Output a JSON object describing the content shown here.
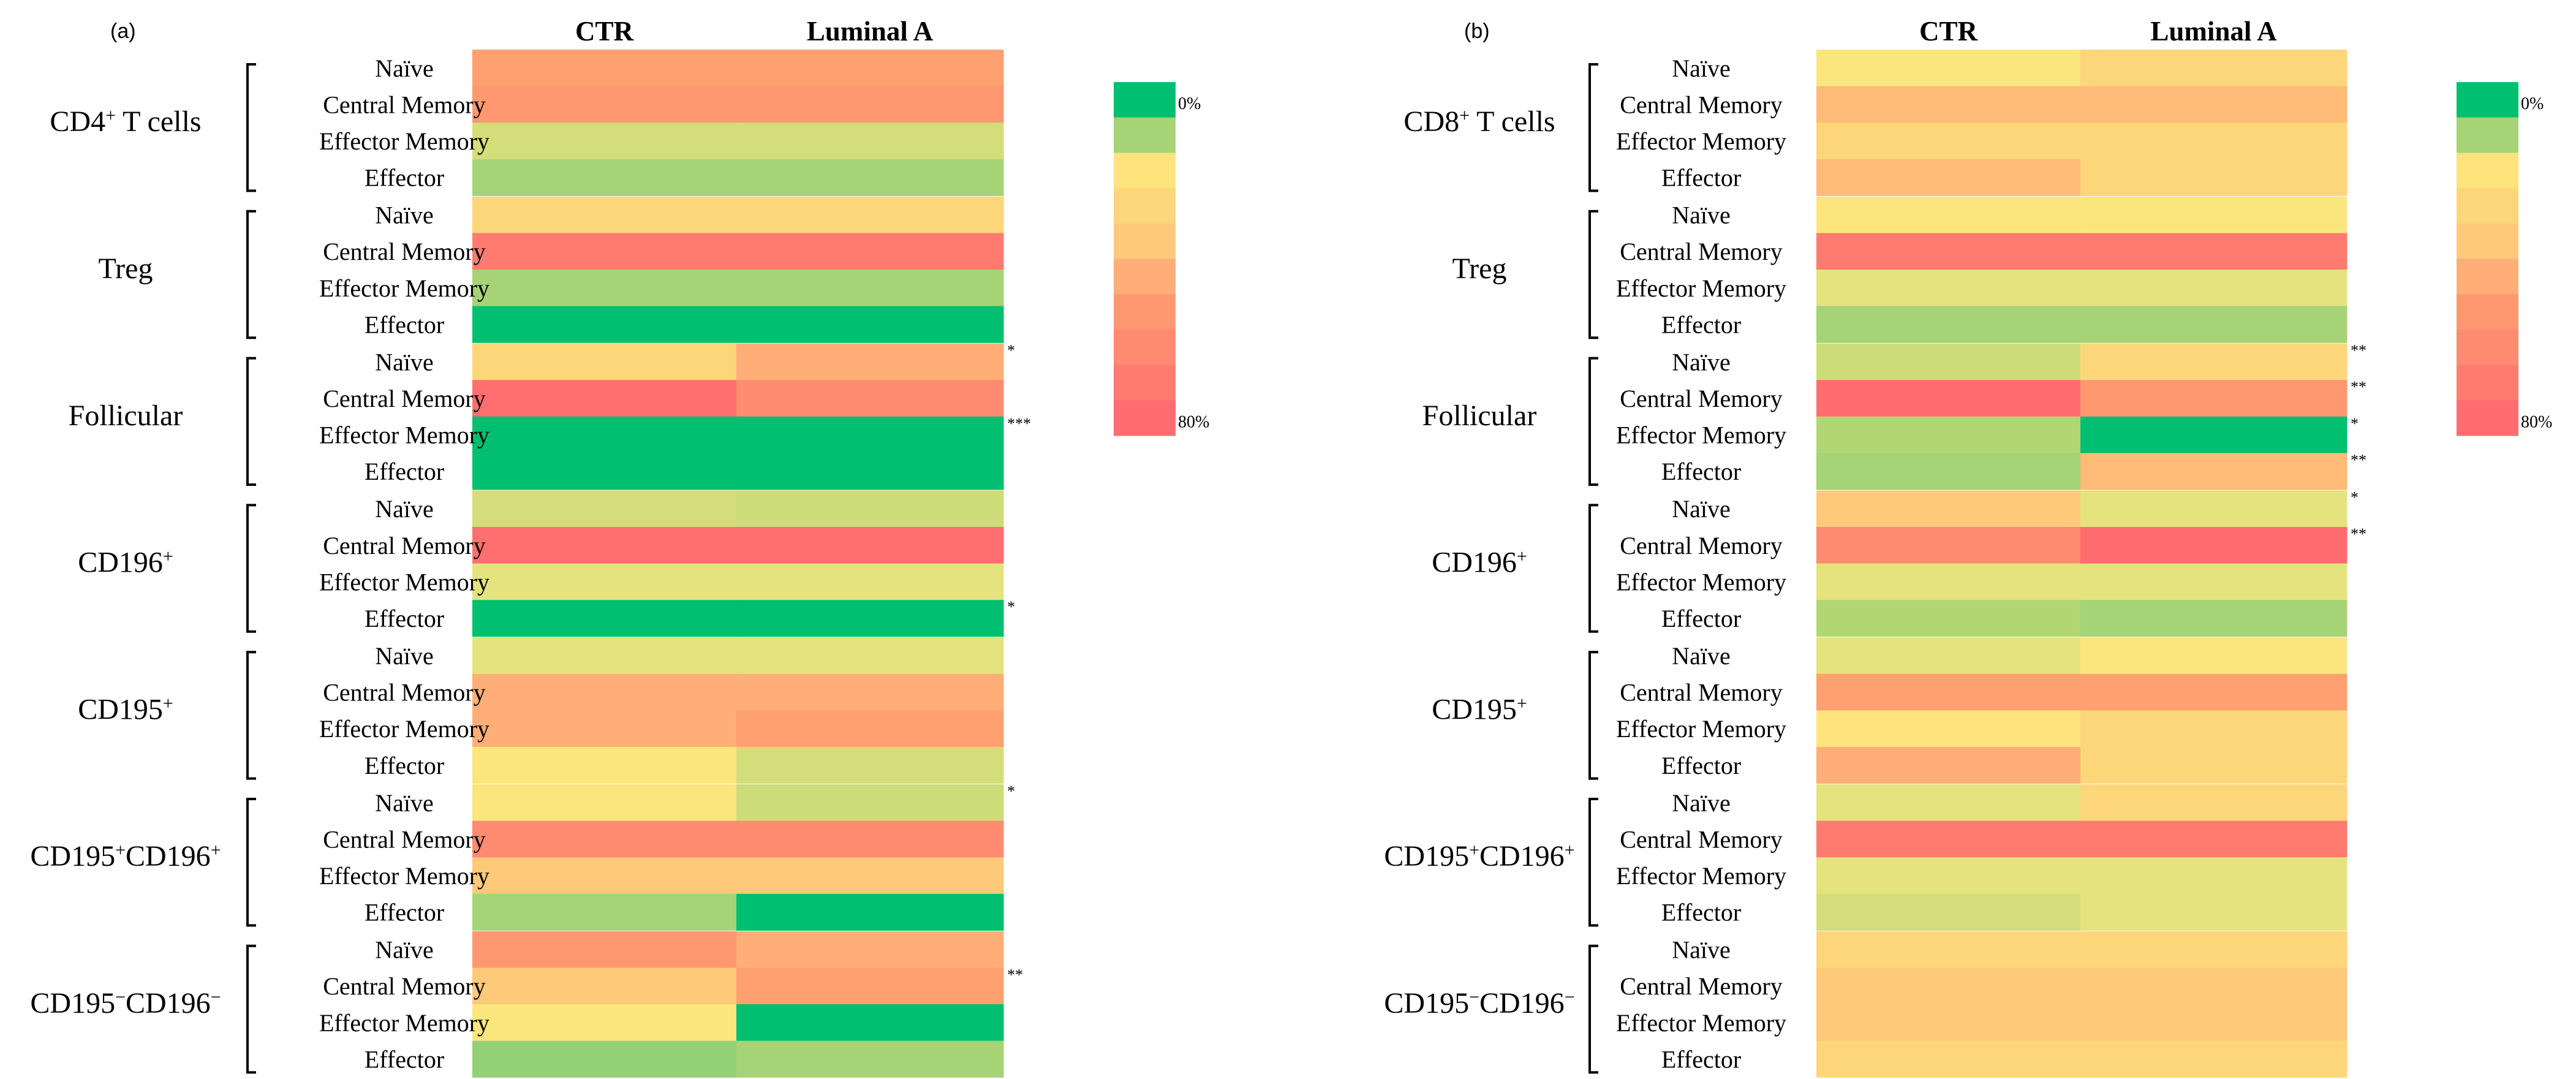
{
  "palette": [
    "#00BF70",
    "#93D177",
    "#A5D375",
    "#B1D774",
    "#CCDC79",
    "#D3DE7A",
    "#E4E37D",
    "#FBE67E",
    "#FDE57D",
    "#FFE47E",
    "#FDD67A",
    "#FFC97A",
    "#FFBB78",
    "#FFAE77",
    "#FFA070",
    "#FF9870",
    "#FF8B70",
    "#FF7B70",
    "#FF6F70",
    "#FF6D70"
  ],
  "row_labels": [
    "Naïve",
    "Central Memory",
    "Effector Memory",
    "Effector"
  ],
  "legend": {
    "colors": [
      "#00BF70",
      "#A5D375",
      "#FFE47E",
      "#FDD67A",
      "#FFC97A",
      "#FFAE77",
      "#FF9870",
      "#FF8B70",
      "#FF7B70",
      "#FF6D70"
    ],
    "min_label": "0%",
    "max_label": "80%"
  },
  "chart_data": [
    {
      "type": "heatmap",
      "panel_label": "(a)",
      "columns": [
        "CTR",
        "Luminal A"
      ],
      "color_scale": {
        "min": 0,
        "max": 80,
        "unit": "%",
        "low_color": "green",
        "high_color": "red"
      },
      "groups": [
        {
          "label_parts": [
            {
              "t": "CD4"
            },
            {
              "t": "+",
              "sup": true
            },
            {
              "t": " T cells"
            }
          ],
          "rows": [
            {
              "values": [
                60,
                60
              ],
              "sig": ""
            },
            {
              "values": [
                64,
                64
              ],
              "sig": ""
            },
            {
              "values": [
                22,
                22
              ],
              "sig": ""
            },
            {
              "values": [
                7,
                7
              ],
              "sig": ""
            }
          ]
        },
        {
          "label_parts": [
            {
              "t": "Treg"
            }
          ],
          "rows": [
            {
              "values": [
                44,
                44
              ],
              "sig": ""
            },
            {
              "values": [
                72,
                72
              ],
              "sig": ""
            },
            {
              "values": [
                7,
                7
              ],
              "sig": ""
            },
            {
              "values": [
                0,
                0
              ],
              "sig": ""
            }
          ]
        },
        {
          "label_parts": [
            {
              "t": "Follicular"
            }
          ],
          "rows": [
            {
              "values": [
                44,
                56
              ],
              "sig": "*"
            },
            {
              "values": [
                76,
                68
              ],
              "sig": ""
            },
            {
              "values": [
                0,
                0
              ],
              "sig": "***"
            },
            {
              "values": [
                0,
                0
              ],
              "sig": ""
            }
          ]
        },
        {
          "label_parts": [
            {
              "t": "CD196"
            },
            {
              "t": "+",
              "sup": true
            }
          ],
          "rows": [
            {
              "values": [
                20,
                16
              ],
              "sig": ""
            },
            {
              "values": [
                76,
                76
              ],
              "sig": ""
            },
            {
              "values": [
                24,
                24
              ],
              "sig": ""
            },
            {
              "values": [
                0,
                0
              ],
              "sig": "*"
            }
          ]
        },
        {
          "label_parts": [
            {
              "t": "CD195"
            },
            {
              "t": "+",
              "sup": true
            }
          ],
          "rows": [
            {
              "values": [
                24,
                24
              ],
              "sig": ""
            },
            {
              "values": [
                56,
                56
              ],
              "sig": ""
            },
            {
              "values": [
                56,
                60
              ],
              "sig": ""
            },
            {
              "values": [
                30,
                22
              ],
              "sig": ""
            }
          ]
        },
        {
          "label_parts": [
            {
              "t": "CD195"
            },
            {
              "t": "+",
              "sup": true
            },
            {
              "t": "CD196"
            },
            {
              "t": "+",
              "sup": true
            }
          ],
          "rows": [
            {
              "values": [
                30,
                18
              ],
              "sig": "*"
            },
            {
              "values": [
                68,
                68
              ],
              "sig": ""
            },
            {
              "values": [
                48,
                48
              ],
              "sig": ""
            },
            {
              "values": [
                7,
                0
              ],
              "sig": ""
            }
          ]
        },
        {
          "label_parts": [
            {
              "t": "CD195"
            },
            {
              "t": "−",
              "sup": true
            },
            {
              "t": "CD196"
            },
            {
              "t": "−",
              "sup": true
            }
          ],
          "rows": [
            {
              "values": [
                64,
                56
              ],
              "sig": ""
            },
            {
              "values": [
                48,
                60
              ],
              "sig": "**"
            },
            {
              "values": [
                30,
                0
              ],
              "sig": ""
            },
            {
              "values": [
                4,
                7
              ],
              "sig": ""
            }
          ]
        }
      ]
    },
    {
      "type": "heatmap",
      "panel_label": "(b)",
      "columns": [
        "CTR",
        "Luminal A"
      ],
      "color_scale": {
        "min": 0,
        "max": 80,
        "unit": "%",
        "low_color": "green",
        "high_color": "red"
      },
      "groups": [
        {
          "label_parts": [
            {
              "t": "CD8"
            },
            {
              "t": "+",
              "sup": true
            },
            {
              "t": " T cells"
            }
          ],
          "rows": [
            {
              "values": [
                30,
                44
              ],
              "sig": ""
            },
            {
              "values": [
                52,
                52
              ],
              "sig": ""
            },
            {
              "values": [
                44,
                44
              ],
              "sig": ""
            },
            {
              "values": [
                52,
                44
              ],
              "sig": ""
            }
          ]
        },
        {
          "label_parts": [
            {
              "t": "Treg"
            }
          ],
          "rows": [
            {
              "values": [
                34,
                30
              ],
              "sig": ""
            },
            {
              "values": [
                72,
                72
              ],
              "sig": ""
            },
            {
              "values": [
                24,
                24
              ],
              "sig": ""
            },
            {
              "values": [
                8,
                10
              ],
              "sig": ""
            }
          ]
        },
        {
          "label_parts": [
            {
              "t": "Follicular"
            }
          ],
          "rows": [
            {
              "values": [
                16,
                44
              ],
              "sig": "**"
            },
            {
              "values": [
                80,
                64
              ],
              "sig": "**"
            },
            {
              "values": [
                12,
                0
              ],
              "sig": "*"
            },
            {
              "values": [
                8,
                50
              ],
              "sig": "**"
            }
          ]
        },
        {
          "label_parts": [
            {
              "t": "CD196"
            },
            {
              "t": "+",
              "sup": true
            }
          ],
          "rows": [
            {
              "values": [
                48,
                24
              ],
              "sig": "*"
            },
            {
              "values": [
                68,
                78
              ],
              "sig": "**"
            },
            {
              "values": [
                24,
                24
              ],
              "sig": ""
            },
            {
              "values": [
                12,
                8
              ],
              "sig": ""
            }
          ]
        },
        {
          "label_parts": [
            {
              "t": "CD195"
            },
            {
              "t": "+",
              "sup": true
            }
          ],
          "rows": [
            {
              "values": [
                26,
                34
              ],
              "sig": ""
            },
            {
              "values": [
                58,
                58
              ],
              "sig": ""
            },
            {
              "values": [
                36,
                44
              ],
              "sig": ""
            },
            {
              "values": [
                56,
                44
              ],
              "sig": ""
            }
          ]
        },
        {
          "label_parts": [
            {
              "t": "CD195"
            },
            {
              "t": "+",
              "sup": true
            },
            {
              "t": "CD196"
            },
            {
              "t": "+",
              "sup": true
            }
          ],
          "rows": [
            {
              "values": [
                26,
                40
              ],
              "sig": ""
            },
            {
              "values": [
                72,
                70
              ],
              "sig": ""
            },
            {
              "values": [
                24,
                24
              ],
              "sig": ""
            },
            {
              "values": [
                22,
                26
              ],
              "sig": ""
            }
          ]
        },
        {
          "label_parts": [
            {
              "t": "CD195"
            },
            {
              "t": "−",
              "sup": true
            },
            {
              "t": "CD196"
            },
            {
              "t": "−",
              "sup": true
            }
          ],
          "rows": [
            {
              "values": [
                44,
                44
              ],
              "sig": ""
            },
            {
              "values": [
                48,
                48
              ],
              "sig": ""
            },
            {
              "values": [
                46,
                48
              ],
              "sig": ""
            },
            {
              "values": [
                44,
                40
              ],
              "sig": ""
            }
          ]
        }
      ]
    }
  ]
}
